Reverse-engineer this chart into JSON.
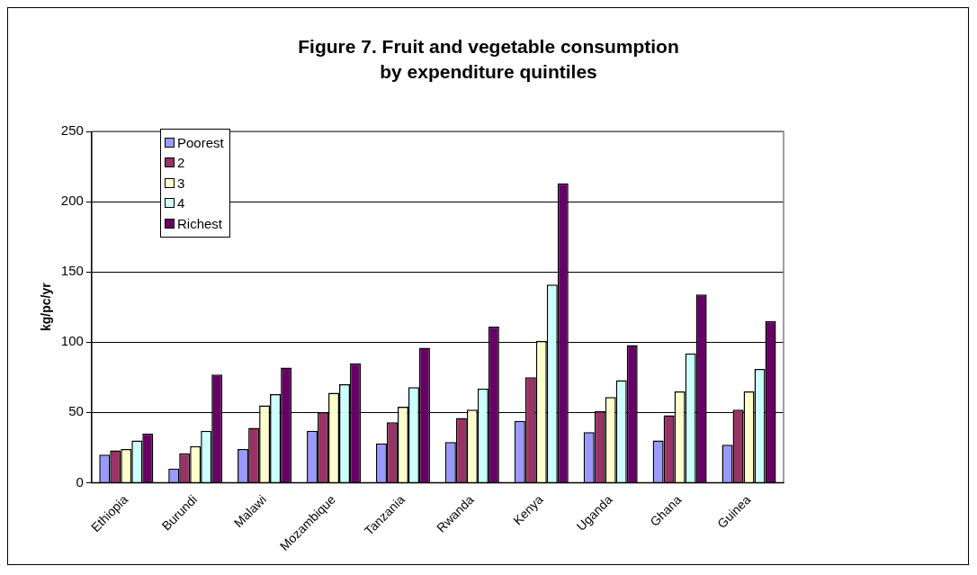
{
  "chart_data": {
    "type": "bar",
    "title": "Figure 7. Fruit and vegetable consumption\nby expenditure quintiles",
    "ylabel": "kg/pc/yr",
    "categories": [
      "Ethiopia",
      "Burundi",
      "Malawi",
      "Mozambique",
      "Tanzania",
      "Rwanda",
      "Kenya",
      "Uganda",
      "Ghana",
      "Guinea"
    ],
    "series": [
      {
        "name": "Poorest",
        "color": "#9999ff",
        "values": [
          20,
          10,
          24,
          37,
          28,
          29,
          44,
          36,
          30,
          27
        ]
      },
      {
        "name": "2",
        "color": "#993366",
        "values": [
          23,
          21,
          39,
          50,
          43,
          46,
          75,
          51,
          48,
          52
        ]
      },
      {
        "name": "3",
        "color": "#ffffcc",
        "values": [
          24,
          26,
          55,
          64,
          54,
          52,
          101,
          61,
          65,
          65
        ]
      },
      {
        "name": "4",
        "color": "#ccffff",
        "values": [
          30,
          37,
          63,
          70,
          68,
          67,
          141,
          73,
          92,
          81
        ]
      },
      {
        "name": "Richest",
        "color": "#660066",
        "values": [
          35,
          77,
          82,
          85,
          96,
          111,
          213,
          98,
          134,
          115
        ]
      }
    ],
    "ylim": [
      0,
      250
    ],
    "yticks": [
      0,
      50,
      100,
      150,
      200,
      250
    ],
    "grid": "y",
    "legend": "top left"
  }
}
